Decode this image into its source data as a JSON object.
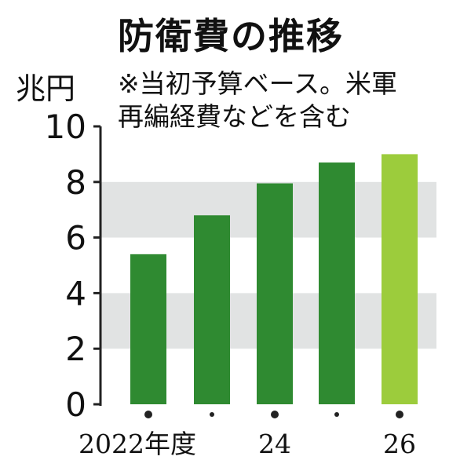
{
  "title": "防衛費の推移",
  "unit": "兆円",
  "note_lines": [
    "※当初予算ベース。米軍",
    "再編経費などを含む"
  ],
  "colors": {
    "bar": "#2f8a31",
    "highlight_bar": "#9ccc3c",
    "band": "#e1e3e3",
    "axis": "#222222",
    "text": "#111111"
  },
  "chart_data": {
    "type": "bar",
    "title": "防衛費の推移",
    "ylabel": "兆円",
    "xlabel": "",
    "ylim": [
      0,
      10
    ],
    "yticks": [
      0,
      2,
      4,
      6,
      8,
      10
    ],
    "categories": [
      "2022年度",
      "",
      "24",
      "",
      "26"
    ],
    "values": [
      5.4,
      6.8,
      7.95,
      8.7,
      9.0
    ],
    "highlight_index": 4,
    "grid": "alternating horizontal bands (2–4, 6–8)",
    "legend": "none"
  }
}
